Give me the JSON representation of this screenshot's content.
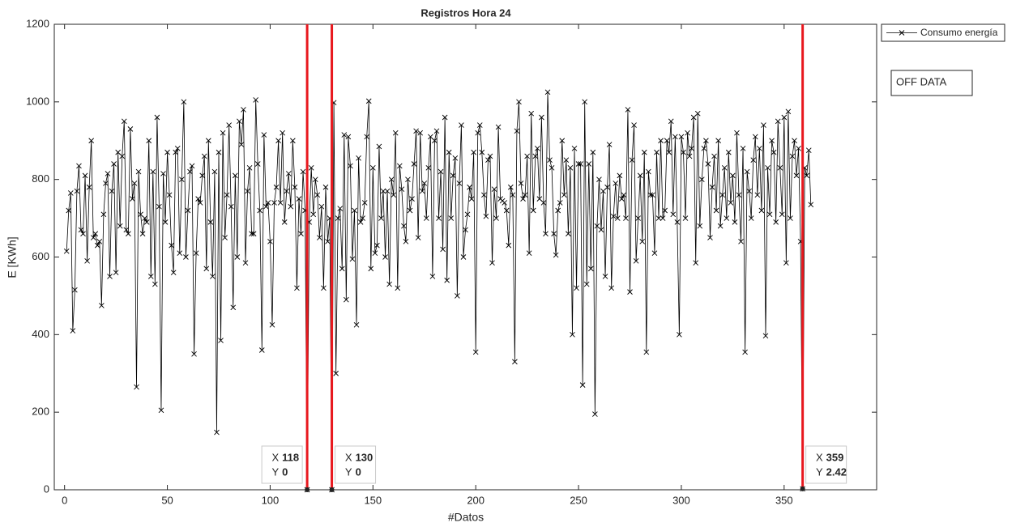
{
  "chart_data": {
    "type": "line",
    "title": "Registros Hora 24",
    "xlabel": "#Datos",
    "ylabel": "E [KWh]",
    "xlim": [
      -5,
      395
    ],
    "ylim": [
      0,
      1200
    ],
    "xticks": [
      0,
      50,
      100,
      150,
      200,
      250,
      300,
      350
    ],
    "yticks": [
      0,
      200,
      400,
      600,
      800,
      1000,
      1200
    ],
    "grid": false,
    "legend_position": "outside-right",
    "x": [
      1,
      2,
      3,
      4,
      5,
      6,
      7,
      8,
      9,
      10,
      11,
      12,
      13,
      14,
      15,
      16,
      17,
      18,
      19,
      20,
      21,
      22,
      23,
      24,
      25,
      26,
      27,
      28,
      29,
      30,
      31,
      32,
      33,
      34,
      35,
      36,
      37,
      38,
      39,
      40,
      41,
      42,
      43,
      44,
      45,
      46,
      47,
      48,
      49,
      50,
      51,
      52,
      53,
      54,
      55,
      56,
      57,
      58,
      59,
      60,
      61,
      62,
      63,
      64,
      65,
      66,
      67,
      68,
      69,
      70,
      71,
      72,
      73,
      74,
      75,
      76,
      77,
      78,
      79,
      80,
      81,
      82,
      83,
      84,
      85,
      86,
      87,
      88,
      89,
      90,
      91,
      92,
      93,
      94,
      95,
      96,
      97,
      98,
      99,
      100,
      101,
      102,
      103,
      104,
      105,
      106,
      107,
      108,
      109,
      110,
      111,
      112,
      113,
      114,
      115,
      116,
      117,
      118,
      119,
      120,
      121,
      122,
      123,
      124,
      125,
      126,
      127,
      128,
      129,
      130,
      131,
      132,
      133,
      134,
      135,
      136,
      137,
      138,
      139,
      140,
      141,
      142,
      143,
      144,
      145,
      146,
      147,
      148,
      149,
      150,
      151,
      152,
      153,
      154,
      155,
      156,
      157,
      158,
      159,
      160,
      161,
      162,
      163,
      164,
      165,
      166,
      167,
      168,
      169,
      170,
      171,
      172,
      173,
      174,
      175,
      176,
      177,
      178,
      179,
      180,
      181,
      182,
      183,
      184,
      185,
      186,
      187,
      188,
      189,
      190,
      191,
      192,
      193,
      194,
      195,
      196,
      197,
      198,
      199,
      200,
      201,
      202,
      203,
      204,
      205,
      206,
      207,
      208,
      209,
      210,
      211,
      212,
      213,
      214,
      215,
      216,
      217,
      218,
      219,
      220,
      221,
      222,
      223,
      224,
      225,
      226,
      227,
      228,
      229,
      230,
      231,
      232,
      233,
      234,
      235,
      236,
      237,
      238,
      239,
      240,
      241,
      242,
      243,
      244,
      245,
      246,
      247,
      248,
      249,
      250,
      251,
      252,
      253,
      254,
      255,
      256,
      257,
      258,
      259,
      260,
      261,
      262,
      263,
      264,
      265,
      266,
      267,
      268,
      269,
      270,
      271,
      272,
      273,
      274,
      275,
      276,
      277,
      278,
      279,
      280,
      281,
      282,
      283,
      284,
      285,
      286,
      287,
      288,
      289,
      290,
      291,
      292,
      293,
      294,
      295,
      296,
      297,
      298,
      299,
      300,
      301,
      302,
      303,
      304,
      305,
      306,
      307,
      308,
      309,
      310,
      311,
      312,
      313,
      314,
      315,
      316,
      317,
      318,
      319,
      320,
      321,
      322,
      323,
      324,
      325,
      326,
      327,
      328,
      329,
      330,
      331,
      332,
      333,
      334,
      335,
      336,
      337,
      338,
      339,
      340,
      341,
      342,
      343,
      344,
      345,
      346,
      347,
      348,
      349,
      350,
      351,
      352,
      353,
      354,
      355,
      356,
      357,
      358,
      359,
      360,
      361,
      362,
      363
    ],
    "series": [
      {
        "name": "Consumo energía",
        "color": "#000000",
        "values": [
          615,
          720,
          765,
          410,
          515,
          770,
          835,
          670,
          660,
          810,
          590,
          780,
          900,
          650,
          660,
          630,
          640,
          475,
          710,
          790,
          815,
          550,
          770,
          840,
          560,
          870,
          680,
          860,
          950,
          670,
          660,
          930,
          750,
          790,
          265,
          820,
          710,
          660,
          700,
          690,
          900,
          550,
          820,
          530,
          960,
          730,
          205,
          815,
          690,
          870,
          760,
          630,
          560,
          870,
          880,
          610,
          800,
          1000,
          600,
          720,
          820,
          835,
          350,
          610,
          750,
          740,
          810,
          860,
          570,
          900,
          690,
          550,
          820,
          148,
          870,
          385,
          920,
          650,
          760,
          940,
          730,
          470,
          810,
          600,
          950,
          890,
          980,
          585,
          770,
          830,
          660,
          660,
          1005,
          840,
          720,
          360,
          915,
          730,
          740,
          640,
          425,
          740,
          780,
          900,
          740,
          920,
          690,
          770,
          815,
          730,
          900,
          780,
          520,
          750,
          660,
          820,
          720,
          0,
          690,
          830,
          710,
          800,
          760,
          650,
          730,
          520,
          780,
          640,
          700,
          0,
          998,
          300,
          700,
          725,
          570,
          915,
          490,
          910,
          835,
          595,
          720,
          425,
          855,
          690,
          700,
          740,
          910,
          1002,
          570,
          830,
          610,
          630,
          885,
          700,
          770,
          600,
          770,
          530,
          800,
          760,
          920,
          520,
          835,
          775,
          680,
          640,
          800,
          720,
          750,
          840,
          925,
          650,
          920,
          770,
          790,
          700,
          830,
          910,
          550,
          900,
          925,
          700,
          820,
          620,
          960,
          540,
          870,
          700,
          810,
          855,
          500,
          790,
          940,
          600,
          670,
          710,
          780,
          750,
          870,
          355,
          920,
          940,
          870,
          760,
          705,
          850,
          860,
          585,
          775,
          700,
          935,
          750,
          745,
          740,
          720,
          630,
          780,
          760,
          330,
          925,
          1000,
          790,
          750,
          760,
          860,
          610,
          970,
          720,
          860,
          880,
          750,
          960,
          740,
          660,
          1025,
          850,
          830,
          660,
          605,
          720,
          740,
          900,
          760,
          850,
          660,
          830,
          400,
          880,
          520,
          840,
          840,
          270,
          1000,
          530,
          840,
          570,
          870,
          195,
          680,
          800,
          670,
          770,
          550,
          780,
          890,
          520,
          705,
          790,
          700,
          810,
          750,
          760,
          700,
          980,
          510,
          850,
          940,
          590,
          700,
          810,
          640,
          870,
          355,
          820,
          760,
          760,
          610,
          870,
          700,
          900,
          700,
          720,
          900,
          870,
          950,
          710,
          910,
          690,
          400,
          910,
          870,
          700,
          920,
          860,
          880,
          960,
          585,
          970,
          680,
          800,
          880,
          900,
          840,
          650,
          780,
          860,
          720,
          900,
          680,
          760,
          830,
          700,
          870,
          740,
          810,
          690,
          920,
          760,
          640,
          880,
          355,
          820,
          770,
          700,
          850,
          910,
          760,
          880,
          720,
          940,
          397,
          830,
          710,
          900,
          870,
          690,
          950,
          830,
          710,
          960,
          585,
          975,
          700,
          860,
          900,
          810,
          880,
          640,
          2.42,
          830,
          810,
          875,
          735
        ]
      }
    ],
    "vlines": {
      "color": "#e8181e",
      "x": [
        118,
        130,
        359
      ]
    },
    "datatips": {
      "x_label": "X",
      "y_label": "Y",
      "points": [
        {
          "x": 118,
          "y": 0
        },
        {
          "x": 130,
          "y": 0
        },
        {
          "x": 359,
          "y": 2.42
        }
      ]
    },
    "annotation": {
      "text": "OFF DATA",
      "color": "#e8181e"
    }
  }
}
